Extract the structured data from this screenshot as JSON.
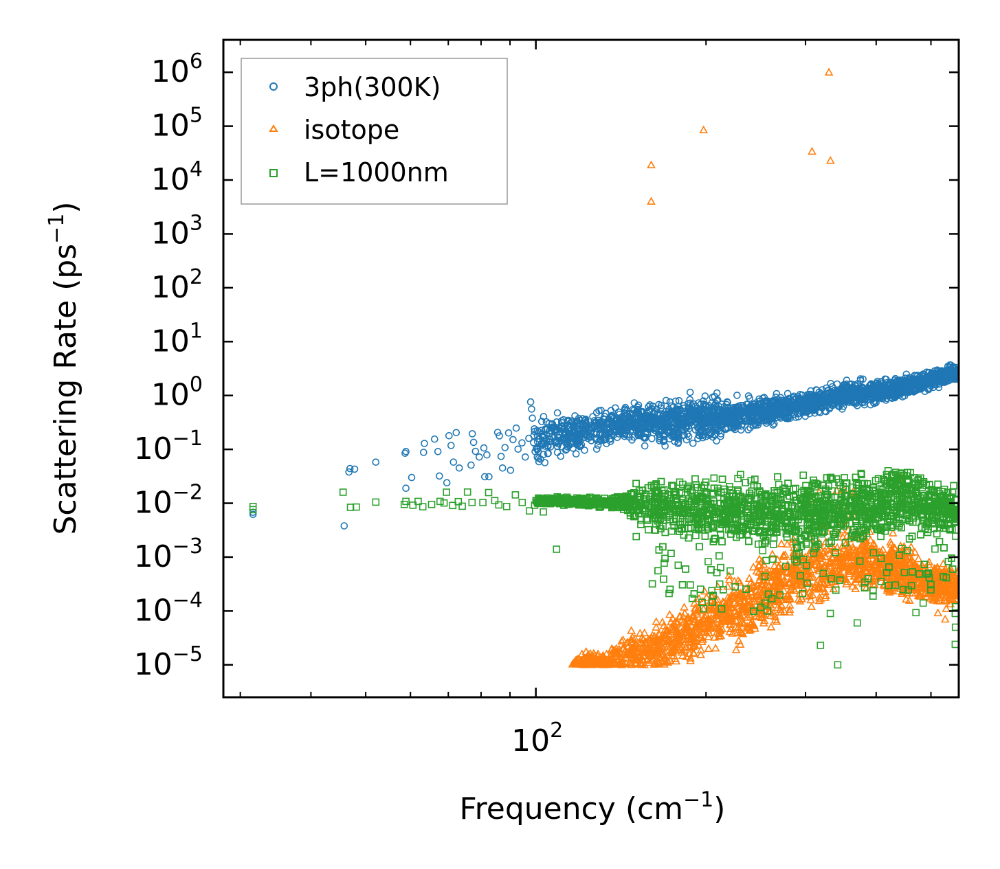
{
  "chart_data": {
    "type": "scatter",
    "title": "",
    "xlabel": "Frequency (cm",
    "xlabel_sup": "−1",
    "xlabel_end": ")",
    "ylabel": "Scattering Rate (ps",
    "ylabel_sup": "−1",
    "ylabel_end": ")",
    "xscale": "log",
    "yscale": "log",
    "xlim": [
      28,
      560
    ],
    "ylim": [
      2.5e-06,
      4000000.0
    ],
    "x_ticks": [
      {
        "value": 100,
        "base": "10",
        "exp": "2"
      }
    ],
    "y_ticks": [
      {
        "value": 1000000.0,
        "base": "10",
        "exp": "6"
      },
      {
        "value": 100000.0,
        "base": "10",
        "exp": "5"
      },
      {
        "value": 10000.0,
        "base": "10",
        "exp": "4"
      },
      {
        "value": 1000.0,
        "base": "10",
        "exp": "3"
      },
      {
        "value": 100.0,
        "base": "10",
        "exp": "2"
      },
      {
        "value": 10.0,
        "base": "10",
        "exp": "1"
      },
      {
        "value": 1.0,
        "base": "10",
        "exp": "0"
      },
      {
        "value": 0.1,
        "base": "10",
        "exp": "−1"
      },
      {
        "value": 0.01,
        "base": "10",
        "exp": "−2"
      },
      {
        "value": 0.001,
        "base": "10",
        "exp": "−3"
      },
      {
        "value": 0.0001,
        "base": "10",
        "exp": "−4"
      },
      {
        "value": 1e-05,
        "base": "10",
        "exp": "−5"
      }
    ],
    "legend_position": "top-left",
    "series": [
      {
        "name": "3ph(300K)",
        "marker": "circle",
        "color": "#1f77b4",
        "points": [
          [
            31.6,
            0.0062
          ],
          [
            31.6,
            0.0068
          ],
          [
            45.8,
            0.0038
          ],
          [
            46.7,
            0.038
          ],
          [
            46.9,
            0.044
          ],
          [
            47.8,
            0.043
          ],
          [
            52.1,
            0.058
          ],
          [
            58.7,
            0.085
          ],
          [
            58.9,
            0.091
          ],
          [
            58.9,
            0.019
          ],
          [
            60.3,
            0.03
          ],
          [
            63.5,
            0.129
          ],
          [
            63.3,
            0.088
          ],
          [
            66.2,
            0.155
          ],
          [
            67.5,
            0.032
          ],
          [
            67.1,
            0.091
          ],
          [
            69.6,
            0.024
          ],
          [
            70.2,
            0.179
          ],
          [
            70.8,
            0.118
          ],
          [
            71.5,
            0.058
          ],
          [
            72.3,
            0.204
          ],
          [
            73.2,
            0.045
          ],
          [
            76.8,
            0.051
          ],
          [
            77.2,
            0.195
          ],
          [
            77.6,
            0.135
          ],
          [
            78.2,
            0.092
          ],
          [
            79.4,
            0.072
          ],
          [
            80.9,
            0.106
          ],
          [
            81.2,
            0.031
          ],
          [
            81.9,
            0.079
          ],
          [
            82.6,
            0.031
          ],
          [
            85.6,
            0.206
          ],
          [
            86.2,
            0.178
          ],
          [
            86.8,
            0.074
          ],
          [
            87.3,
            0.045
          ],
          [
            88.2,
            0.108
          ],
          [
            89.5,
            0.202
          ],
          [
            90.2,
            0.041
          ],
          [
            91.1,
            0.152
          ],
          [
            92.3,
            0.248
          ],
          [
            93.0,
            0.101
          ],
          [
            94.5,
            0.132
          ],
          [
            95.8,
            0.072
          ],
          [
            97.2,
            0.16
          ],
          [
            97.9,
            0.758
          ],
          [
            98.3,
            0.56
          ],
          [
            98.6,
            0.38
          ],
          [
            99.4,
            0.24
          ]
        ],
        "band": {
          "x_start": 99,
          "x_end": 558,
          "count": 2400,
          "log_center": [
            [
              99,
              -0.85
            ],
            [
              140,
              -0.55
            ],
            [
              170,
              -0.5
            ],
            [
              200,
              -0.42
            ],
            [
              260,
              -0.3
            ],
            [
              300,
              -0.15
            ],
            [
              350,
              0.0
            ],
            [
              420,
              0.1
            ],
            [
              500,
              0.3
            ],
            [
              540,
              0.4
            ],
            [
              558,
              0.4
            ]
          ],
          "log_spread": [
            [
              99,
              0.38
            ],
            [
              140,
              0.3
            ],
            [
              200,
              0.36
            ],
            [
              260,
              0.22
            ],
            [
              330,
              0.2
            ],
            [
              420,
              0.18
            ],
            [
              558,
              0.14
            ]
          ]
        }
      },
      {
        "name": "isotope",
        "marker": "triangle",
        "color": "#ff7f0e",
        "points": [
          [
            160,
            19000
          ],
          [
            160,
            4000
          ],
          [
            198,
            85000
          ],
          [
            308,
            34000
          ],
          [
            332,
            23000
          ],
          [
            330,
            1000000
          ],
          [
            317,
            0.016
          ],
          [
            443,
            0.03
          ],
          [
            545,
            0.00038
          ],
          [
            548,
            0.00016
          ],
          [
            532,
            0.00011
          ],
          [
            530,
            7e-05
          ]
        ],
        "band": {
          "x_start": 116,
          "x_end": 558,
          "count": 1800,
          "log_center": [
            [
              116,
              -5.0
            ],
            [
              140,
              -4.9
            ],
            [
              170,
              -4.6
            ],
            [
              200,
              -4.2
            ],
            [
              230,
              -4.0
            ],
            [
              260,
              -3.6
            ],
            [
              290,
              -3.3
            ],
            [
              330,
              -3.2
            ],
            [
              380,
              -3.0
            ],
            [
              450,
              -3.3
            ],
            [
              500,
              -3.5
            ],
            [
              558,
              -3.5
            ]
          ],
          "log_spread": [
            [
              116,
              0.12
            ],
            [
              160,
              0.4
            ],
            [
              210,
              0.55
            ],
            [
              260,
              0.6
            ],
            [
              330,
              0.5
            ],
            [
              450,
              0.45
            ],
            [
              558,
              0.3
            ]
          ]
        }
      },
      {
        "name": "L=1000nm",
        "marker": "square",
        "color": "#2ca02c",
        "points": [
          [
            31.6,
            0.0087
          ],
          [
            31.6,
            0.0076
          ],
          [
            45.6,
            0.016
          ],
          [
            47.0,
            0.0084
          ],
          [
            48.1,
            0.0085
          ],
          [
            52.1,
            0.0105
          ],
          [
            58.9,
            0.0108
          ],
          [
            58.5,
            0.0095
          ],
          [
            60.6,
            0.0092
          ],
          [
            61.9,
            0.0108
          ],
          [
            63.1,
            0.0086
          ],
          [
            65.4,
            0.0095
          ],
          [
            67.7,
            0.0108
          ],
          [
            68.8,
            0.0101
          ],
          [
            69.5,
            0.016
          ],
          [
            71.3,
            0.0091
          ],
          [
            72.9,
            0.0107
          ],
          [
            74.1,
            0.0088
          ],
          [
            75.7,
            0.0161
          ],
          [
            77.1,
            0.0103
          ],
          [
            80.6,
            0.0103
          ],
          [
            82.5,
            0.0158
          ],
          [
            84.6,
            0.0112
          ],
          [
            86.0,
            0.0093
          ],
          [
            88.8,
            0.0087
          ],
          [
            92.0,
            0.0143
          ],
          [
            94.6,
            0.0103
          ],
          [
            97.4,
            0.0072
          ],
          [
            99.5,
            0.0092
          ],
          [
            103.1,
            0.0069
          ],
          [
            108.8,
            0.0014
          ],
          [
            150.5,
            0.0024
          ],
          [
            165.2,
            0.0072
          ],
          [
            182.5,
            0.0093
          ],
          [
            198.0,
            0.00011
          ],
          [
            207.1,
            0.0062
          ],
          [
            248.8,
            0.0062
          ],
          [
            256.7,
            0.0001
          ],
          [
            276.8,
            0.00067
          ],
          [
            296.4,
            0.00021
          ],
          [
            318.8,
            2.3e-05
          ],
          [
            331.8,
            9e-05
          ],
          [
            342.0,
            1e-05
          ],
          [
            370.3,
            6e-05
          ],
          [
            395.5,
            0.0012
          ],
          [
            420.0,
            0.04
          ],
          [
            447.0,
            0.0326
          ],
          [
            448.8,
            0.00052
          ],
          [
            470.4,
            9.3e-05
          ],
          [
            484.4,
            0.00014
          ],
          [
            552.0,
            2.4e-05
          ],
          [
            552.5,
            5e-05
          ],
          [
            552.0,
            9e-05
          ],
          [
            552.4,
            0.00012
          ]
        ],
        "band": {
          "x_start": 100,
          "x_end": 558,
          "count": 3200,
          "log_center": [
            [
              100,
              -1.95
            ],
            [
              150,
              -2.0
            ],
            [
              200,
              -2.1
            ],
            [
              260,
              -2.15
            ],
            [
              330,
              -2.1
            ],
            [
              400,
              -2.05
            ],
            [
              450,
              -1.9
            ],
            [
              500,
              -2.05
            ],
            [
              558,
              -2.15
            ]
          ],
          "log_spread": [
            [
              100,
              0.05
            ],
            [
              140,
              0.1
            ],
            [
              160,
              0.45
            ],
            [
              220,
              0.55
            ],
            [
              300,
              0.55
            ],
            [
              400,
              0.55
            ],
            [
              558,
              0.4
            ]
          ]
        }
      }
    ]
  }
}
